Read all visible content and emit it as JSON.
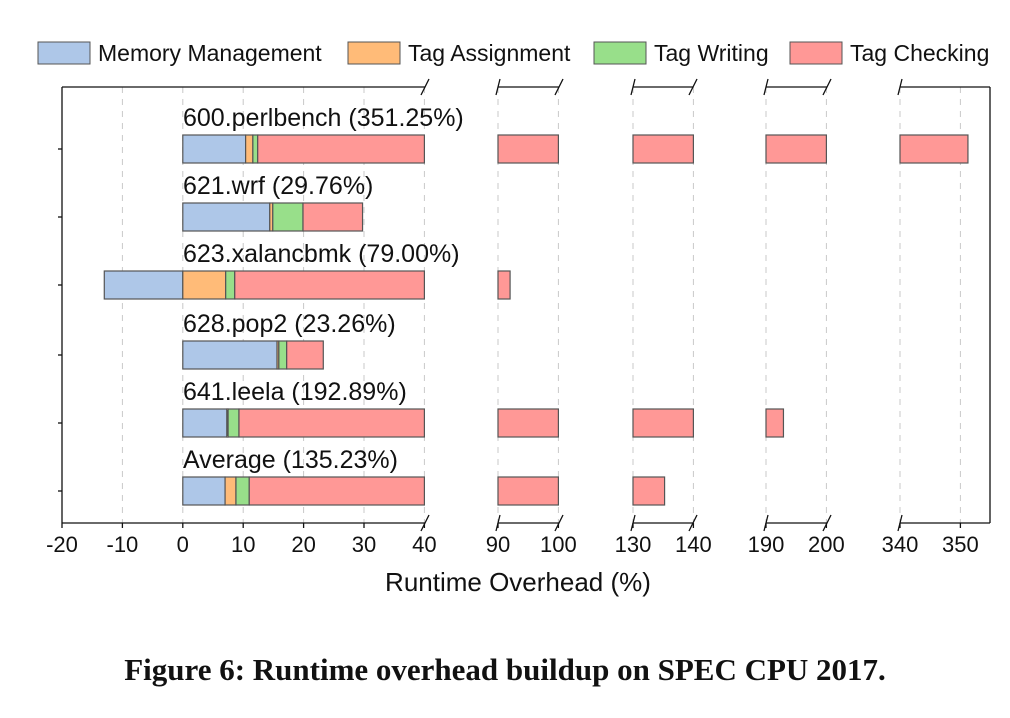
{
  "caption": "Figure 6: Runtime overhead buildup on SPEC CPU 2017.",
  "legend": [
    {
      "label": "Memory Management",
      "color": "#aec7e8"
    },
    {
      "label": "Tag Assignment",
      "color": "#ffbb78"
    },
    {
      "label": "Tag Writing",
      "color": "#98df8a"
    },
    {
      "label": "Tag Checking",
      "color": "#ff9896"
    }
  ],
  "chart_data": {
    "type": "bar",
    "orientation": "horizontal",
    "stacked": true,
    "broken_axis": true,
    "title": "",
    "xlabel": "Runtime Overhead (%)",
    "ylabel": "",
    "axis_segments": [
      [
        -20,
        40
      ],
      [
        90,
        100
      ],
      [
        130,
        140
      ],
      [
        190,
        200
      ],
      [
        340,
        353
      ]
    ],
    "x_ticks": [
      "-20",
      "-10",
      "0",
      "10",
      "20",
      "30",
      "40",
      "90",
      "100",
      "130",
      "140",
      "190",
      "200",
      "340",
      "350"
    ],
    "grid": "vertical dashed",
    "legend_position": "top",
    "categories": [
      "600.perlbench (351.25%)",
      "621.wrf (29.76%)",
      "623.xalancbmk (79.00%)",
      "628.pop2 (23.26%)",
      "641.leela (192.89%)",
      "Average (135.23%)"
    ],
    "totals": [
      351.25,
      29.76,
      79.0,
      23.26,
      192.89,
      135.23
    ],
    "series": [
      {
        "name": "Memory Management",
        "color": "#aec7e8",
        "values": [
          10.4,
          14.4,
          -13.0,
          15.6,
          7.3,
          7.0
        ]
      },
      {
        "name": "Tag Assignment",
        "color": "#ffbb78",
        "values": [
          1.2,
          0.5,
          7.1,
          0.3,
          0.2,
          1.8
        ]
      },
      {
        "name": "Tag Writing",
        "color": "#98df8a",
        "values": [
          0.8,
          5.0,
          1.5,
          1.3,
          1.8,
          2.2
        ]
      },
      {
        "name": "Tag Checking",
        "color": "#ff9896",
        "values": [
          338.85,
          9.86,
          83.4,
          6.06,
          183.59,
          124.23
        ]
      }
    ]
  }
}
